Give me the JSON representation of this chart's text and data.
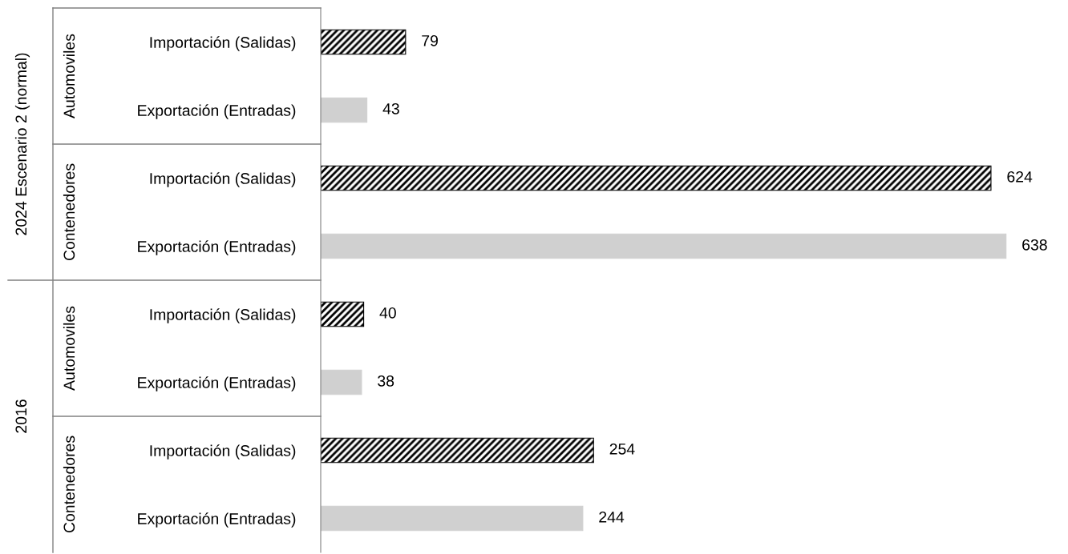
{
  "chart_data": {
    "type": "bar",
    "orientation": "horizontal",
    "categories": [
      "Importación (Salidas)",
      "Exportación (Entradas)",
      "Importación (Salidas)",
      "Exportación (Entradas)",
      "Importación (Salidas)",
      "Exportación (Entradas)",
      "Importación (Salidas)",
      "Exportación (Entradas)"
    ],
    "values": [
      79,
      43,
      624,
      638,
      40,
      38,
      254,
      244
    ],
    "colors": [
      "#000000",
      "#d0d0d0",
      "#000000",
      "#d0d0d0",
      "#000000",
      "#d0d0d0",
      "#000000",
      "#d0d0d0"
    ],
    "data_labels": true,
    "annotations": [
      "2024 Escenario 2 (normal)",
      "Automoviles",
      "Contenedores",
      "2016",
      "Automoviles",
      "Contenedores"
    ],
    "grid": false,
    "legend": false
  }
}
